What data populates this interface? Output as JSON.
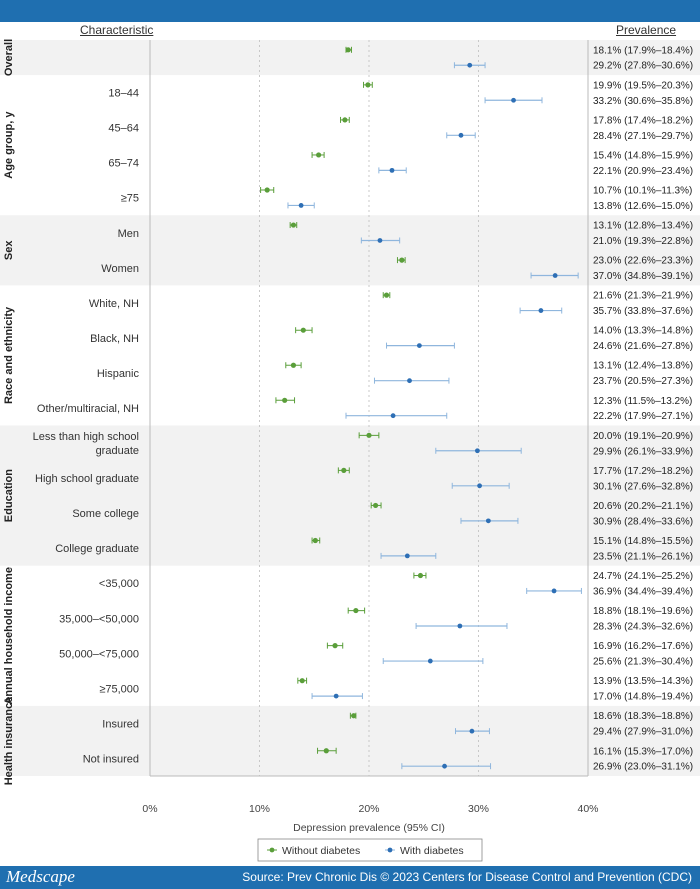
{
  "header": {
    "characteristic": "Characteristic",
    "prevalence": "Prevalence"
  },
  "footer": {
    "brand": "Medscape",
    "source": "Source: Prev Chronic Dis © 2023 Centers for Disease Control and Prevention (CDC)"
  },
  "colors": {
    "without": "#5a9e3a",
    "with": "#2e6fb5",
    "with_ci": "#8fb6dd",
    "bar": "#1f6fb0",
    "shade": "#f2f2f2"
  },
  "chart_data": {
    "type": "scatter",
    "subtype": "forest-plot",
    "xlabel": "Depression prevalence (95% CI)",
    "xlim": [
      0,
      40
    ],
    "xticks": [
      "0%",
      "10%",
      "20%",
      "30%",
      "40%"
    ],
    "legend_position": "bottom-center",
    "legend": [
      "Without diabetes",
      "With diabetes"
    ],
    "series_names": [
      "Without diabetes",
      "With diabetes"
    ],
    "groups": [
      {
        "name": "Overall",
        "shaded": true,
        "rows": [
          {
            "label": "",
            "without": {
              "v": 18.1,
              "lo": 17.9,
              "hi": 18.4,
              "text": "18.1% (17.9%–18.4%)"
            },
            "with": {
              "v": 29.2,
              "lo": 27.8,
              "hi": 30.6,
              "text": "29.2% (27.8%–30.6%)"
            }
          }
        ]
      },
      {
        "name": "Age group, y",
        "shaded": false,
        "rows": [
          {
            "label": "18–44",
            "without": {
              "v": 19.9,
              "lo": 19.5,
              "hi": 20.3,
              "text": "19.9% (19.5%–20.3%)"
            },
            "with": {
              "v": 33.2,
              "lo": 30.6,
              "hi": 35.8,
              "text": "33.2% (30.6%–35.8%)"
            }
          },
          {
            "label": "45–64",
            "without": {
              "v": 17.8,
              "lo": 17.4,
              "hi": 18.2,
              "text": "17.8% (17.4%–18.2%)"
            },
            "with": {
              "v": 28.4,
              "lo": 27.1,
              "hi": 29.7,
              "text": "28.4% (27.1%–29.7%)"
            }
          },
          {
            "label": "65–74",
            "without": {
              "v": 15.4,
              "lo": 14.8,
              "hi": 15.9,
              "text": "15.4% (14.8%–15.9%)"
            },
            "with": {
              "v": 22.1,
              "lo": 20.9,
              "hi": 23.4,
              "text": "22.1% (20.9%–23.4%)"
            }
          },
          {
            "label": "≥75",
            "without": {
              "v": 10.7,
              "lo": 10.1,
              "hi": 11.3,
              "text": "10.7% (10.1%–11.3%)"
            },
            "with": {
              "v": 13.8,
              "lo": 12.6,
              "hi": 15.0,
              "text": "13.8% (12.6%–15.0%)"
            }
          }
        ]
      },
      {
        "name": "Sex",
        "shaded": true,
        "rows": [
          {
            "label": "Men",
            "without": {
              "v": 13.1,
              "lo": 12.8,
              "hi": 13.4,
              "text": "13.1% (12.8%–13.4%)"
            },
            "with": {
              "v": 21.0,
              "lo": 19.3,
              "hi": 22.8,
              "text": "21.0% (19.3%–22.8%)"
            }
          },
          {
            "label": "Women",
            "without": {
              "v": 23.0,
              "lo": 22.6,
              "hi": 23.3,
              "text": "23.0% (22.6%–23.3%)"
            },
            "with": {
              "v": 37.0,
              "lo": 34.8,
              "hi": 39.1,
              "text": "37.0% (34.8%–39.1%)"
            }
          }
        ]
      },
      {
        "name": "Race and ethnicity",
        "shaded": false,
        "rows": [
          {
            "label": "White, NH",
            "without": {
              "v": 21.6,
              "lo": 21.3,
              "hi": 21.9,
              "text": "21.6% (21.3%–21.9%)"
            },
            "with": {
              "v": 35.7,
              "lo": 33.8,
              "hi": 37.6,
              "text": "35.7% (33.8%–37.6%)"
            }
          },
          {
            "label": "Black, NH",
            "without": {
              "v": 14.0,
              "lo": 13.3,
              "hi": 14.8,
              "text": "14.0% (13.3%–14.8%)"
            },
            "with": {
              "v": 24.6,
              "lo": 21.6,
              "hi": 27.8,
              "text": "24.6% (21.6%–27.8%)"
            }
          },
          {
            "label": "Hispanic",
            "without": {
              "v": 13.1,
              "lo": 12.4,
              "hi": 13.8,
              "text": "13.1% (12.4%–13.8%)"
            },
            "with": {
              "v": 23.7,
              "lo": 20.5,
              "hi": 27.3,
              "text": "23.7% (20.5%–27.3%)"
            }
          },
          {
            "label": "Other/multiracial, NH",
            "without": {
              "v": 12.3,
              "lo": 11.5,
              "hi": 13.2,
              "text": "12.3% (11.5%–13.2%)"
            },
            "with": {
              "v": 22.2,
              "lo": 17.9,
              "hi": 27.1,
              "text": "22.2% (17.9%–27.1%)"
            }
          }
        ]
      },
      {
        "name": "Education",
        "shaded": true,
        "rows": [
          {
            "label": "Less than high school|graduate",
            "without": {
              "v": 20.0,
              "lo": 19.1,
              "hi": 20.9,
              "text": "20.0% (19.1%–20.9%)"
            },
            "with": {
              "v": 29.9,
              "lo": 26.1,
              "hi": 33.9,
              "text": "29.9% (26.1%–33.9%)"
            }
          },
          {
            "label": "High school graduate",
            "without": {
              "v": 17.7,
              "lo": 17.2,
              "hi": 18.2,
              "text": "17.7% (17.2%–18.2%)"
            },
            "with": {
              "v": 30.1,
              "lo": 27.6,
              "hi": 32.8,
              "text": "30.1% (27.6%–32.8%)"
            }
          },
          {
            "label": "Some college",
            "without": {
              "v": 20.6,
              "lo": 20.2,
              "hi": 21.1,
              "text": "20.6% (20.2%–21.1%)"
            },
            "with": {
              "v": 30.9,
              "lo": 28.4,
              "hi": 33.6,
              "text": "30.9% (28.4%–33.6%)"
            }
          },
          {
            "label": "College graduate",
            "without": {
              "v": 15.1,
              "lo": 14.8,
              "hi": 15.5,
              "text": "15.1% (14.8%–15.5%)"
            },
            "with": {
              "v": 23.5,
              "lo": 21.1,
              "hi": 26.1,
              "text": "23.5% (21.1%–26.1%)"
            }
          }
        ]
      },
      {
        "name": "Annual household income",
        "shaded": false,
        "rows": [
          {
            "label": "<35,000",
            "without": {
              "v": 24.7,
              "lo": 24.1,
              "hi": 25.2,
              "text": "24.7% (24.1%–25.2%)"
            },
            "with": {
              "v": 36.9,
              "lo": 34.4,
              "hi": 39.4,
              "text": "36.9% (34.4%–39.4%)"
            }
          },
          {
            "label": "35,000–<50,000",
            "without": {
              "v": 18.8,
              "lo": 18.1,
              "hi": 19.6,
              "text": "18.8% (18.1%–19.6%)"
            },
            "with": {
              "v": 28.3,
              "lo": 24.3,
              "hi": 32.6,
              "text": "28.3% (24.3%–32.6%)"
            }
          },
          {
            "label": "50,000–<75,000",
            "without": {
              "v": 16.9,
              "lo": 16.2,
              "hi": 17.6,
              "text": "16.9% (16.2%–17.6%)"
            },
            "with": {
              "v": 25.6,
              "lo": 21.3,
              "hi": 30.4,
              "text": "25.6% (21.3%–30.4%)"
            }
          },
          {
            "label": "≥75,000",
            "without": {
              "v": 13.9,
              "lo": 13.5,
              "hi": 14.3,
              "text": "13.9% (13.5%–14.3%)"
            },
            "with": {
              "v": 17.0,
              "lo": 14.8,
              "hi": 19.4,
              "text": "17.0% (14.8%–19.4%)"
            }
          }
        ]
      },
      {
        "name": "Health insurance",
        "shaded": true,
        "rows": [
          {
            "label": "Insured",
            "without": {
              "v": 18.6,
              "lo": 18.3,
              "hi": 18.8,
              "text": "18.6% (18.3%–18.8%)"
            },
            "with": {
              "v": 29.4,
              "lo": 27.9,
              "hi": 31.0,
              "text": "29.4% (27.9%–31.0%)"
            }
          },
          {
            "label": "Not insured",
            "without": {
              "v": 16.1,
              "lo": 15.3,
              "hi": 17.0,
              "text": "16.1% (15.3%–17.0%)"
            },
            "with": {
              "v": 26.9,
              "lo": 23.0,
              "hi": 31.1,
              "text": "26.9% (23.0%–31.1%)"
            }
          }
        ]
      }
    ]
  }
}
